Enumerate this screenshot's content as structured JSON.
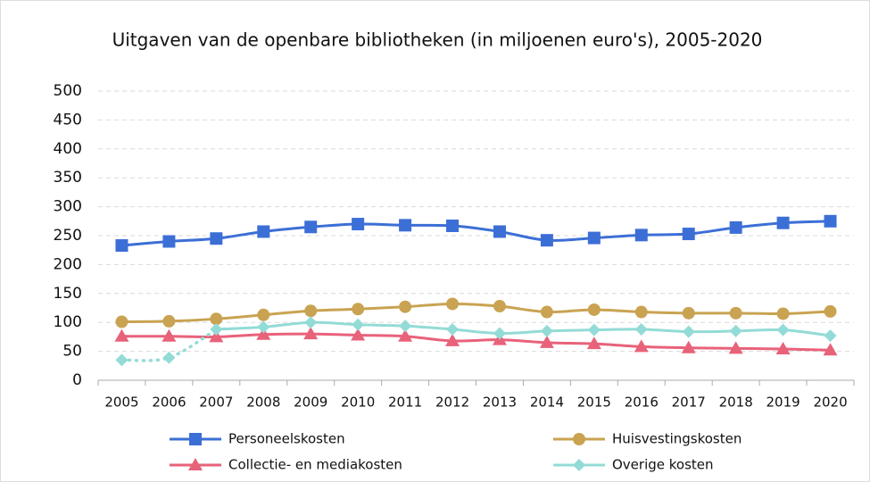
{
  "chart_data": {
    "type": "line",
    "title": "Uitgaven van de openbare bibliotheken (in miljoenen euro's), 2005-2020",
    "categories": [
      "2005",
      "2006",
      "2007",
      "2008",
      "2009",
      "2010",
      "2011",
      "2012",
      "2013",
      "2014",
      "2015",
      "2016",
      "2017",
      "2018",
      "2019",
      "2020"
    ],
    "series": [
      {
        "name": "Personeelskosten",
        "color": "#3c6fd6",
        "marker": "square",
        "values": [
          233,
          240,
          245,
          257,
          265,
          270,
          268,
          267,
          257,
          242,
          246,
          251,
          253,
          264,
          272,
          275
        ]
      },
      {
        "name": "Huisvestingskosten",
        "color": "#c9a352",
        "marker": "circle",
        "values": [
          101,
          102,
          106,
          113,
          120,
          123,
          127,
          132,
          128,
          118,
          122,
          118,
          116,
          116,
          115,
          119
        ]
      },
      {
        "name": "Collectie- en mediakosten",
        "color": "#e8627a",
        "marker": "triangle",
        "values": [
          76,
          76,
          75,
          79,
          80,
          78,
          76,
          68,
          70,
          65,
          63,
          58,
          56,
          55,
          54,
          52
        ]
      },
      {
        "name": "Overige kosten",
        "color": "#93dbd6",
        "marker": "diamond",
        "dotted_until": "2007",
        "values": [
          35,
          39,
          88,
          92,
          100,
          96,
          94,
          88,
          81,
          85,
          87,
          88,
          84,
          85,
          87,
          77
        ]
      }
    ],
    "ylim": [
      0,
      500
    ],
    "yticks": [
      0,
      50,
      100,
      150,
      200,
      250,
      300,
      350,
      400,
      450,
      500
    ],
    "grid": true,
    "smooth": true
  }
}
